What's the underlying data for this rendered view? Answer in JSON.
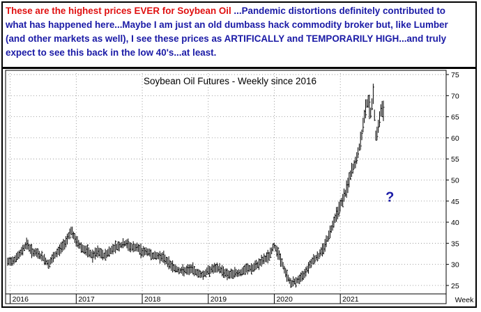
{
  "annotation": {
    "highlight": "These are the highest prices EVER for Soybean Oil",
    "body": "  ...Pandemic distortions definitely contributed to what has happened here...Maybe I am just an old dumbass hack commodity broker but, like Lumber (and other markets as well), I see these prices as ARTIFICALLY and TEMPORARILY HIGH...and truly expect to see this back in the low 40's...at least.",
    "highlight_color": "#e01010",
    "body_color": "#1a1aa6"
  },
  "chart_data": {
    "type": "line",
    "title": "Soybean Oil Futures - Weekly since 2016",
    "xlabel": "Week",
    "ylabel": "",
    "ylim": [
      23,
      76
    ],
    "y_ticks": [
      25,
      30,
      35,
      40,
      45,
      50,
      55,
      60,
      65,
      70,
      75
    ],
    "x_tick_labels": [
      "2016",
      "2017",
      "2018",
      "2019",
      "2020",
      "2021"
    ],
    "annotations": [
      {
        "text": "?",
        "x": 2021.75,
        "y": 46,
        "color": "#1a1aa6"
      }
    ],
    "grid": true,
    "bar_color": "#000000",
    "series": [
      {
        "points": [
          [
            2015.96,
            30.5
          ],
          [
            2016.05,
            31
          ],
          [
            2016.15,
            32.5
          ],
          [
            2016.25,
            35
          ],
          [
            2016.33,
            33
          ],
          [
            2016.42,
            32.5
          ],
          [
            2016.5,
            31.5
          ],
          [
            2016.58,
            30
          ],
          [
            2016.67,
            32
          ],
          [
            2016.75,
            33.5
          ],
          [
            2016.83,
            35
          ],
          [
            2016.92,
            38
          ],
          [
            2017.0,
            35.5
          ],
          [
            2017.08,
            34
          ],
          [
            2017.17,
            33
          ],
          [
            2017.25,
            32
          ],
          [
            2017.33,
            33
          ],
          [
            2017.42,
            32
          ],
          [
            2017.5,
            33
          ],
          [
            2017.58,
            34
          ],
          [
            2017.67,
            34.5
          ],
          [
            2017.75,
            35
          ],
          [
            2017.83,
            34
          ],
          [
            2017.92,
            34
          ],
          [
            2018.0,
            33
          ],
          [
            2018.08,
            33
          ],
          [
            2018.17,
            32
          ],
          [
            2018.25,
            32
          ],
          [
            2018.33,
            31.5
          ],
          [
            2018.42,
            30
          ],
          [
            2018.5,
            29
          ],
          [
            2018.58,
            28.5
          ],
          [
            2018.67,
            28.5
          ],
          [
            2018.75,
            29
          ],
          [
            2018.83,
            28
          ],
          [
            2018.92,
            27.5
          ],
          [
            2019.0,
            28.5
          ],
          [
            2019.08,
            29
          ],
          [
            2019.17,
            29
          ],
          [
            2019.25,
            28
          ],
          [
            2019.33,
            27.5
          ],
          [
            2019.42,
            28
          ],
          [
            2019.5,
            28
          ],
          [
            2019.58,
            29
          ],
          [
            2019.67,
            29
          ],
          [
            2019.75,
            30
          ],
          [
            2019.83,
            31
          ],
          [
            2019.92,
            32
          ],
          [
            2020.0,
            34.5
          ],
          [
            2020.05,
            33
          ],
          [
            2020.1,
            31
          ],
          [
            2020.17,
            28
          ],
          [
            2020.25,
            25.5
          ],
          [
            2020.33,
            26
          ],
          [
            2020.42,
            27
          ],
          [
            2020.5,
            29
          ],
          [
            2020.58,
            31
          ],
          [
            2020.67,
            32
          ],
          [
            2020.75,
            34
          ],
          [
            2020.83,
            37
          ],
          [
            2020.92,
            41
          ],
          [
            2021.0,
            44
          ],
          [
            2021.08,
            47
          ],
          [
            2021.17,
            52
          ],
          [
            2021.25,
            55
          ],
          [
            2021.33,
            61
          ],
          [
            2021.38,
            67
          ],
          [
            2021.42,
            69
          ],
          [
            2021.46,
            66
          ],
          [
            2021.5,
            70
          ],
          [
            2021.54,
            60
          ],
          [
            2021.58,
            63
          ],
          [
            2021.62,
            67
          ],
          [
            2021.67,
            66
          ]
        ]
      }
    ]
  }
}
